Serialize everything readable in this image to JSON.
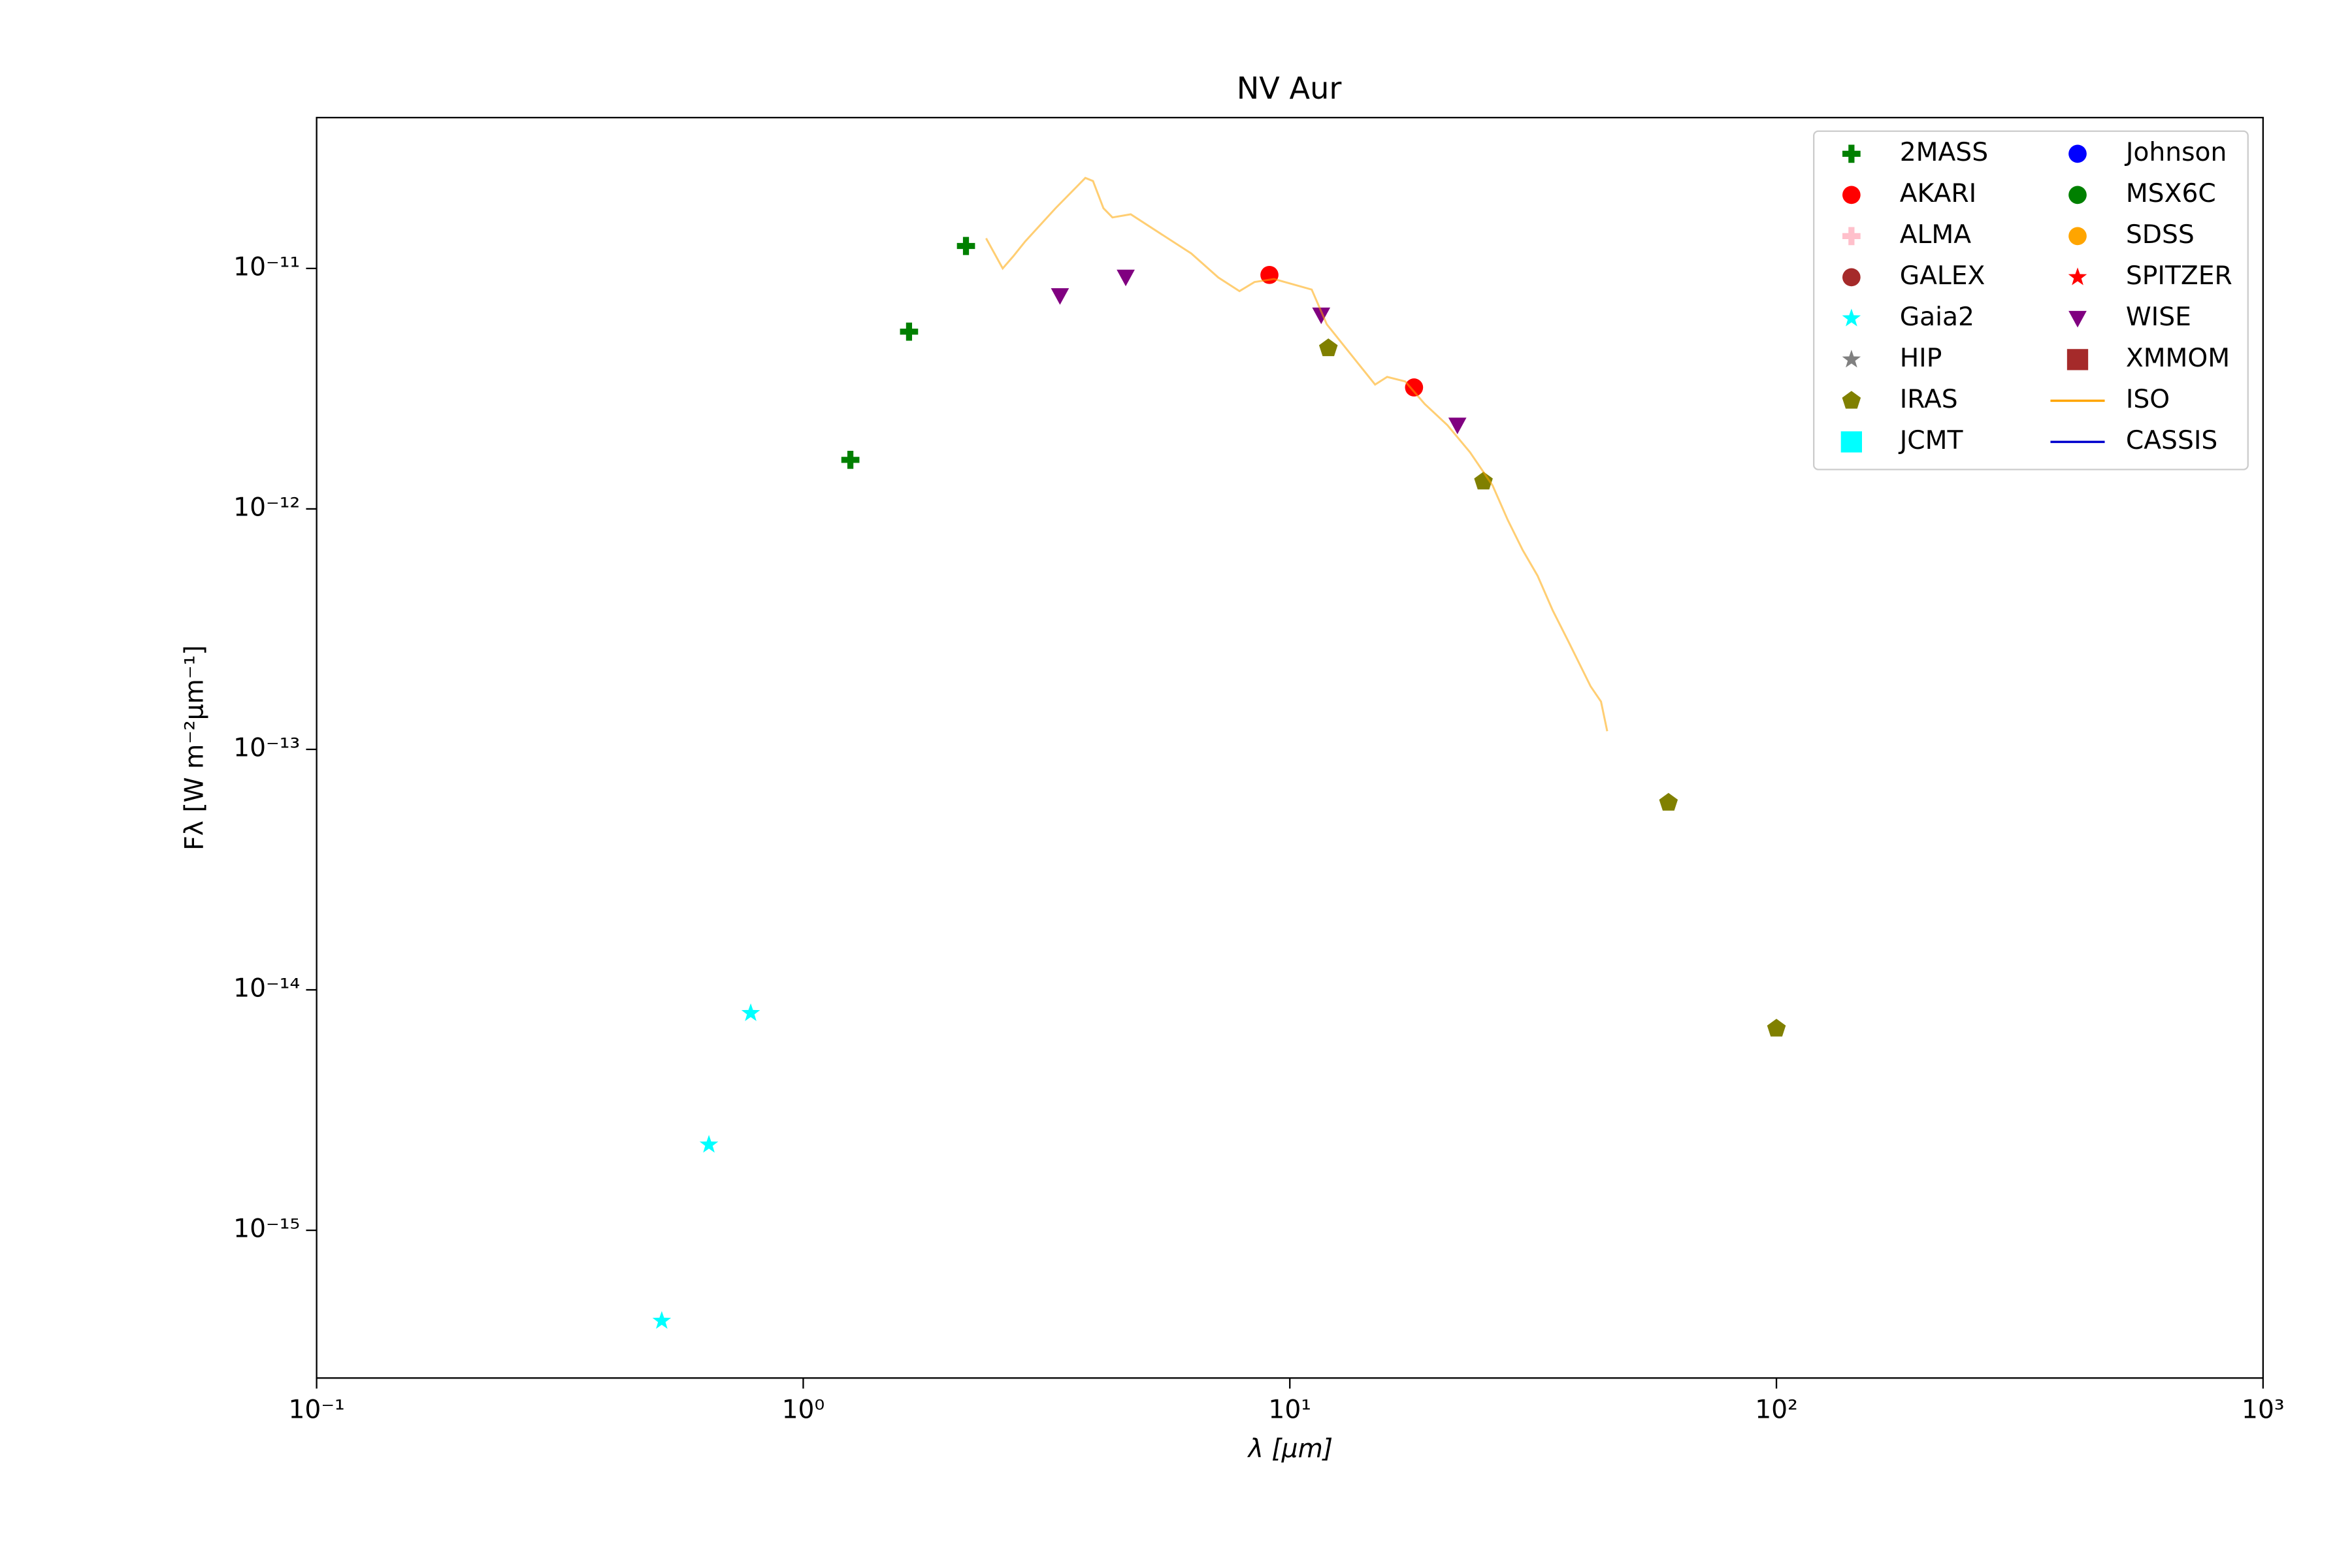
{
  "chart_data": {
    "type": "scatter",
    "title": "NV Aur",
    "xlabel": "λ [μm]",
    "ylabel": "Fλ [W m⁻²μm⁻¹]",
    "xscale": "log",
    "yscale": "log",
    "xlim": [
      0.1,
      1000
    ],
    "ylim": [
      2.43e-16,
      4.24e-11
    ],
    "xticks": [
      {
        "value": 0.1,
        "label": "10⁻¹"
      },
      {
        "value": 1,
        "label": "10⁰"
      },
      {
        "value": 10,
        "label": "10¹"
      },
      {
        "value": 100,
        "label": "10²"
      },
      {
        "value": 1000,
        "label": "10³"
      }
    ],
    "yticks": [
      {
        "value": 1e-15,
        "label": "10⁻¹⁵"
      },
      {
        "value": 1e-14,
        "label": "10⁻¹⁴"
      },
      {
        "value": 1e-13,
        "label": "10⁻¹³"
      },
      {
        "value": 1e-12,
        "label": "10⁻¹²"
      },
      {
        "value": 1e-11,
        "label": "10⁻¹¹"
      }
    ],
    "legend": "upper right",
    "series": [
      {
        "name": "2MASS",
        "color": "#008000",
        "marker": "P",
        "x": [
          1.25,
          1.65,
          2.16
        ],
        "values": [
          1.6e-12,
          5.46e-12,
          1.24e-11
        ]
      },
      {
        "name": "AKARI",
        "color": "#ff0000",
        "marker": "o",
        "x": [
          9.08,
          18.0
        ],
        "values": [
          9.4e-12,
          3.2e-12
        ]
      },
      {
        "name": "ALMA",
        "color": "#ffc0cb",
        "marker": "P",
        "x": [],
        "values": []
      },
      {
        "name": "GALEX",
        "color": "#a52a2a",
        "marker": "o",
        "x": [],
        "values": []
      },
      {
        "name": "Gaia2",
        "color": "#00ffff",
        "marker": "*",
        "x": [
          0.512,
          0.64,
          0.78
        ],
        "values": [
          4.2e-16,
          2.27e-15,
          8e-15
        ]
      },
      {
        "name": "HIP",
        "color": "#808080",
        "marker": "*",
        "x": [],
        "values": []
      },
      {
        "name": "IRAS",
        "color": "#808000",
        "marker": "p",
        "x": [
          12,
          25,
          60,
          100
        ],
        "values": [
          4.66e-12,
          1.3e-12,
          6e-14,
          6.9e-15
        ]
      },
      {
        "name": "JCMT",
        "color": "#00ffff",
        "marker": "s",
        "x": [],
        "values": []
      },
      {
        "name": "Johnson",
        "color": "#0000ff",
        "marker": "o",
        "x": [],
        "values": []
      },
      {
        "name": "MSX6C",
        "color": "#008000",
        "marker": "o",
        "x": [],
        "values": []
      },
      {
        "name": "SDSS",
        "color": "#ffa500",
        "marker": "o",
        "x": [],
        "values": []
      },
      {
        "name": "SPITZER",
        "color": "#ff0000",
        "marker": "*",
        "x": [],
        "values": []
      },
      {
        "name": "WISE",
        "color": "#800080",
        "marker": "v",
        "x": [
          3.37,
          4.6,
          11.6,
          22.1
        ],
        "values": [
          7.7e-12,
          9.2e-12,
          6.4e-12,
          2.23e-12
        ]
      },
      {
        "name": "XMMOM",
        "color": "#a52a2a",
        "marker": "s",
        "x": [],
        "values": []
      },
      {
        "name": "ISO",
        "color": "#ffa500",
        "marker": "-",
        "x": [
          2.376,
          2.57,
          2.7,
          2.86,
          3.3,
          3.8,
          3.94,
          4.14,
          4.32,
          4.71,
          5.43,
          6.27,
          7.13,
          7.88,
          8.46,
          9.28,
          11.09,
          11.91,
          13.73,
          14.97,
          15.85,
          17.26,
          18.94,
          21.08,
          23.46,
          26.11,
          28.04,
          30.1,
          32.3,
          34.7,
          37.3,
          41.5,
          43.6,
          44.9
        ],
        "values": [
          1.335e-11,
          1e-11,
          1.122e-11,
          1.297e-11,
          1.78e-11,
          2.38e-11,
          2.31e-11,
          1.78e-11,
          1.63e-11,
          1.68e-11,
          1.394e-11,
          1.155e-11,
          9.17e-12,
          8.05e-12,
          8.78e-12,
          9.04e-12,
          8.17e-12,
          5.86e-12,
          4.09e-12,
          3.29e-12,
          3.54e-12,
          3.39e-12,
          2.73e-12,
          2.23e-12,
          1.72e-12,
          1.25e-12,
          9e-13,
          6.74e-13,
          5.27e-13,
          3.78e-13,
          2.83e-13,
          1.83e-13,
          1.58e-13,
          1.19e-13
        ]
      },
      {
        "name": "CASSIS",
        "color": "#0000cd",
        "marker": "-",
        "x": [],
        "values": []
      }
    ]
  }
}
